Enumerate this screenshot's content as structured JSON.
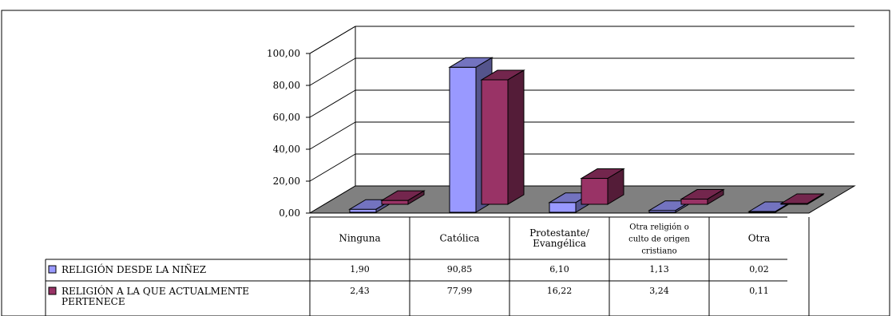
{
  "top_caption": "",
  "chart_data": {
    "type": "bar",
    "categories": [
      [
        "Ninguna"
      ],
      [
        "Católica"
      ],
      [
        "Protestante/",
        "Evangélica"
      ],
      [
        "Otra religión o",
        "culto de origen",
        "cristiano"
      ],
      [
        "Otra"
      ]
    ],
    "series": [
      {
        "name": "RELIGIÓN DESDE LA NIÑEZ",
        "name_lines": [
          "RELIGIÓN DESDE LA NIÑEZ"
        ],
        "values": [
          1.9,
          90.85,
          6.1,
          1.13,
          0.02
        ],
        "value_labels": [
          "1,90",
          "90,85",
          "6,10",
          "1,13",
          "0,02"
        ],
        "color": "#9999ff"
      },
      {
        "name": "RELIGIÓN A LA QUE ACTUALMENTE PERTENECE",
        "name_lines": [
          "RELIGIÓN A LA QUE ACTUALMENTE",
          "PERTENECE"
        ],
        "values": [
          2.43,
          77.99,
          16.22,
          3.24,
          0.11
        ],
        "value_labels": [
          "2,43",
          "77,99",
          "16,22",
          "3,24",
          "0,11"
        ],
        "color": "#993366"
      }
    ],
    "ylim": [
      0,
      100
    ],
    "yticks": [
      "0,00",
      "20,00",
      "40,00",
      "60,00",
      "80,00",
      "100,00"
    ],
    "grid": true,
    "legend": "data-table-left",
    "floor_color": "#808080",
    "three_d": true
  }
}
